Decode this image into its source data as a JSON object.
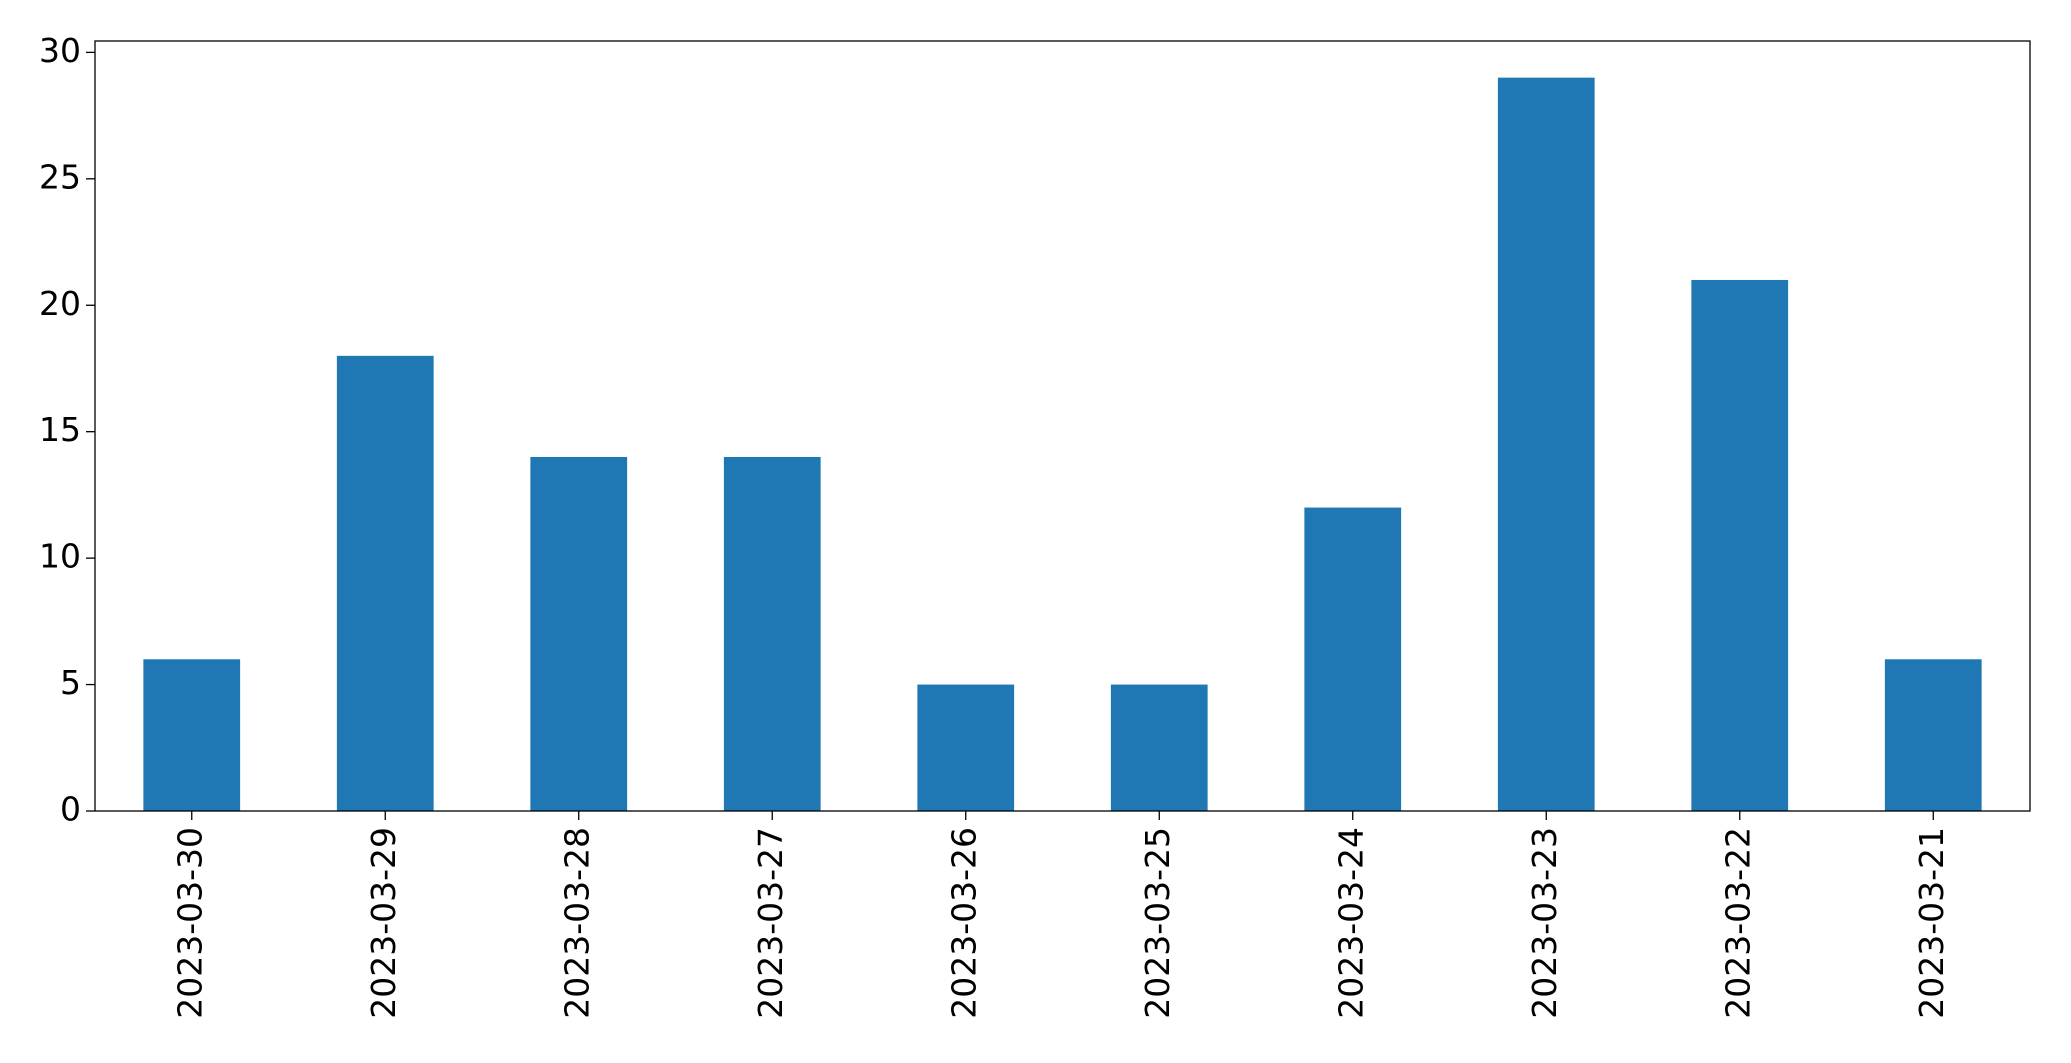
{
  "chart_data": {
    "type": "bar",
    "categories": [
      "2023-03-30",
      "2023-03-29",
      "2023-03-28",
      "2023-03-27",
      "2023-03-26",
      "2023-03-25",
      "2023-03-24",
      "2023-03-23",
      "2023-03-22",
      "2023-03-21"
    ],
    "values": [
      6,
      18,
      14,
      14,
      5,
      5,
      12,
      29,
      21,
      6
    ],
    "color": "#1f77b4",
    "ylim": [
      0,
      30.45
    ],
    "yticks": [
      0,
      5,
      10,
      15,
      20,
      25,
      30
    ],
    "grid": false
  }
}
